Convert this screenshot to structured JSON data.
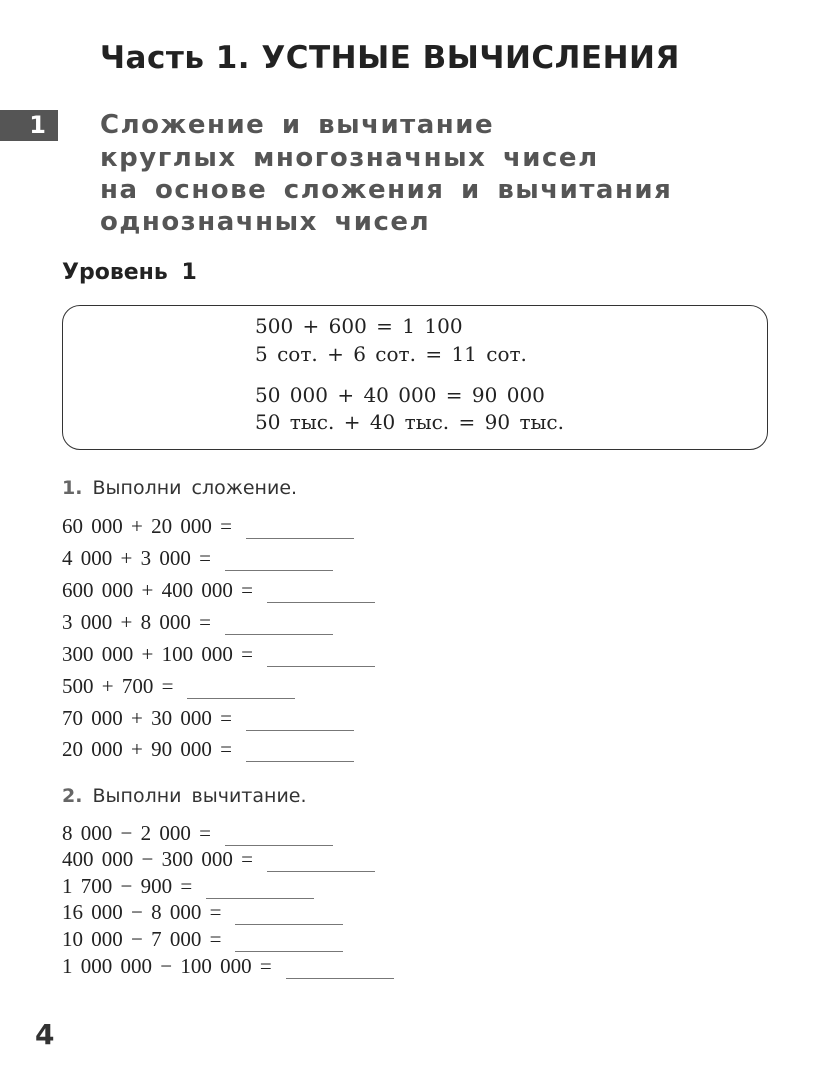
{
  "title": "Часть 1. УСТНЫЕ ВЫЧИСЛЕНИЯ",
  "section": {
    "number": "1",
    "heading_lines": [
      "Сложение и вычитание",
      "круглых многозначных чисел",
      "на основе сложения и вычитания",
      "однозначных чисел"
    ]
  },
  "level": "Уровень 1",
  "examples": [
    "500 + 600 = 1 100",
    "5 сот. + 6 сот. = 11 сот.",
    "50 000 + 40 000 = 90 000",
    "50 тыс. + 40 тыс. = 90 тыс."
  ],
  "task1": {
    "number": "1.",
    "instruction": "Выполни сложение.",
    "items": [
      "60 000 + 20 000 =",
      "4 000 + 3 000 =",
      "600 000 + 400 000 =",
      "3 000 + 8 000 =",
      "300 000 + 100 000 =",
      "500 + 700 =",
      "70 000 + 30 000 =",
      "20 000 + 90 000 ="
    ]
  },
  "task2": {
    "number": "2.",
    "instruction": "Выполни вычитание.",
    "items": [
      "8 000 − 2 000 =",
      "400 000 − 300 000 =",
      "1 700 − 900 =",
      "16 000 − 8 000 =",
      "10 000 − 7 000 =",
      "1 000 000 − 100 000 ="
    ]
  },
  "page_number": "4"
}
